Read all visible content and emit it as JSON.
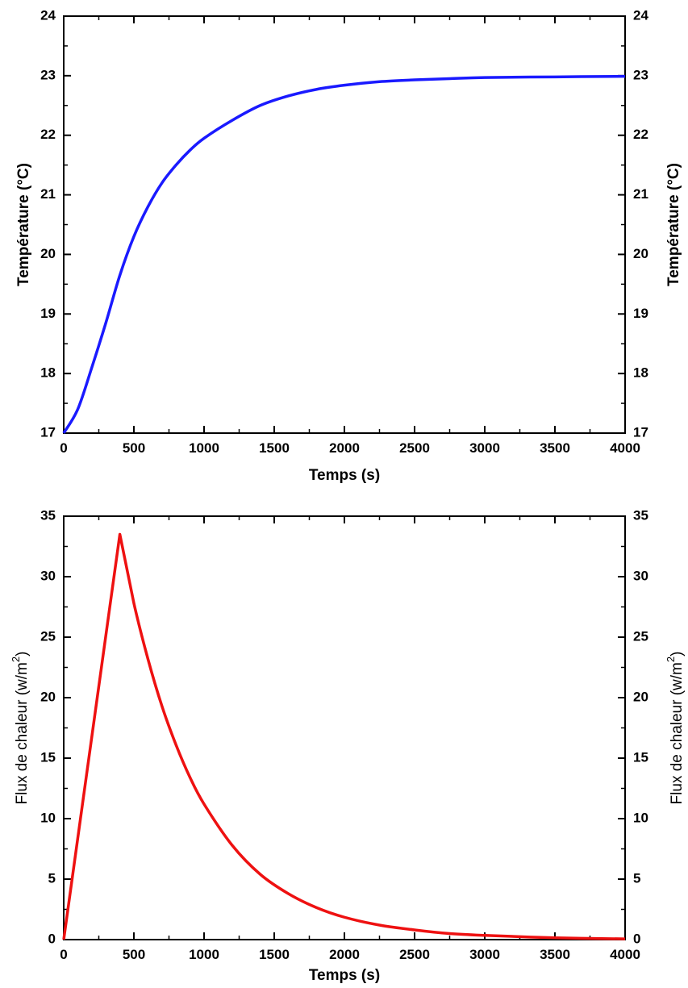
{
  "chart_data": [
    {
      "type": "line",
      "xlabel": "Temps (s)",
      "ylabel_left": "Température (°C)",
      "ylabel_right": "Température (°C)",
      "xlim": [
        0,
        4000
      ],
      "ylim": [
        17,
        24
      ],
      "xticks": [
        "0",
        "500",
        "1000",
        "1500",
        "2000",
        "2500",
        "3000",
        "3500",
        "4000"
      ],
      "yticks": [
        "17",
        "18",
        "19",
        "20",
        "21",
        "22",
        "23",
        "24"
      ],
      "grid": false,
      "color": "#1a1aff",
      "series": [
        {
          "x": [
            0,
            100,
            200,
            300,
            400,
            500,
            600,
            700,
            800,
            900,
            1000,
            1200,
            1400,
            1600,
            1800,
            2000,
            2250,
            2500,
            2750,
            3000,
            3500,
            4000
          ],
          "y": [
            17.0,
            17.4,
            18.1,
            18.85,
            19.65,
            20.3,
            20.8,
            21.2,
            21.5,
            21.75,
            21.95,
            22.25,
            22.5,
            22.66,
            22.77,
            22.84,
            22.9,
            22.93,
            22.95,
            22.97,
            22.98,
            22.99
          ]
        }
      ]
    },
    {
      "type": "line",
      "xlabel": "Temps (s)",
      "ylabel_left": "Flux de chaleur (w/m2)",
      "ylabel_right": "Flux de chaleur (w/m2)",
      "xlim": [
        0,
        4000
      ],
      "ylim": [
        0,
        35
      ],
      "xticks": [
        "0",
        "500",
        "1000",
        "1500",
        "2000",
        "2500",
        "3000",
        "3500",
        "4000"
      ],
      "yticks": [
        "0",
        "5",
        "10",
        "15",
        "20",
        "25",
        "30",
        "35"
      ],
      "grid": false,
      "color": "#ee1111",
      "series": [
        {
          "x": [
            0,
            400,
            500,
            600,
            700,
            800,
            900,
            1000,
            1200,
            1400,
            1600,
            1800,
            2000,
            2250,
            2500,
            2750,
            3000,
            3500,
            4000
          ],
          "y": [
            0,
            33.5,
            27.8,
            23.2,
            19.3,
            16.1,
            13.4,
            11.2,
            7.8,
            5.4,
            3.8,
            2.65,
            1.85,
            1.2,
            0.8,
            0.5,
            0.35,
            0.15,
            0.06
          ]
        }
      ]
    }
  ]
}
